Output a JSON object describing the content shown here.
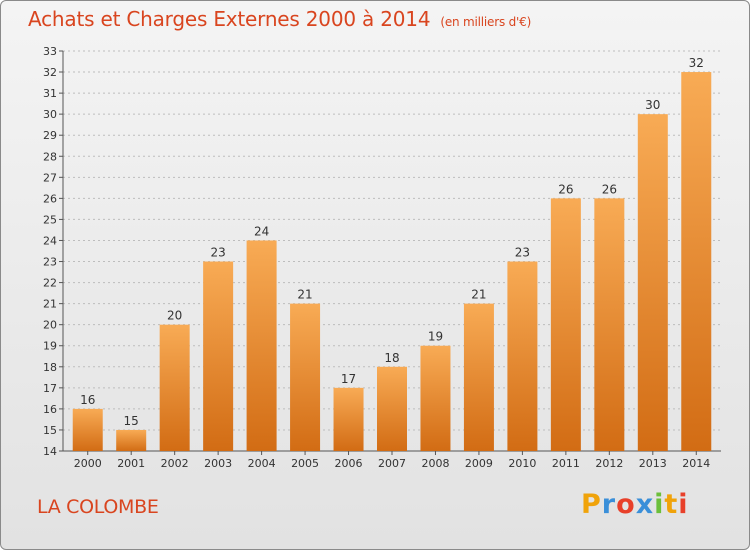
{
  "header": {
    "title": "Achats et Charges Externes 2000 à 2014",
    "subtitle": "(en milliers d'€)"
  },
  "footer": {
    "commune": "LA COLOMBE",
    "logo": {
      "text": "Proxiti",
      "letters": [
        {
          "ch": "P",
          "color": "#f0a30a"
        },
        {
          "ch": "r",
          "color": "#3a8fd9"
        },
        {
          "ch": "o",
          "color": "#e8402a"
        },
        {
          "ch": "x",
          "color": "#3a8fd9"
        },
        {
          "ch": "i",
          "color": "#6cbf3a"
        },
        {
          "ch": "t",
          "color": "#f0a30a"
        },
        {
          "ch": "i",
          "color": "#e8402a"
        }
      ]
    }
  },
  "colors": {
    "accent": "#d9451f",
    "bar_light": "#f8ab55",
    "bar_dark": "#d26c14"
  },
  "chart_data": {
    "type": "bar",
    "title": "Achats et Charges Externes 2000 à 2014",
    "subtitle": "(en milliers d'€)",
    "xlabel": "",
    "ylabel": "",
    "categories": [
      "2000",
      "2001",
      "2002",
      "2003",
      "2004",
      "2005",
      "2006",
      "2007",
      "2008",
      "2009",
      "2010",
      "2011",
      "2012",
      "2013",
      "2014"
    ],
    "values": [
      16,
      15,
      20,
      23,
      24,
      21,
      17,
      18,
      19,
      21,
      23,
      26,
      26,
      30,
      32
    ],
    "ylim": [
      14,
      33
    ],
    "yticks": [
      14,
      15,
      16,
      17,
      18,
      19,
      20,
      21,
      22,
      23,
      24,
      25,
      26,
      27,
      28,
      29,
      30,
      31,
      32,
      33
    ],
    "grid": true,
    "legend": "none"
  }
}
